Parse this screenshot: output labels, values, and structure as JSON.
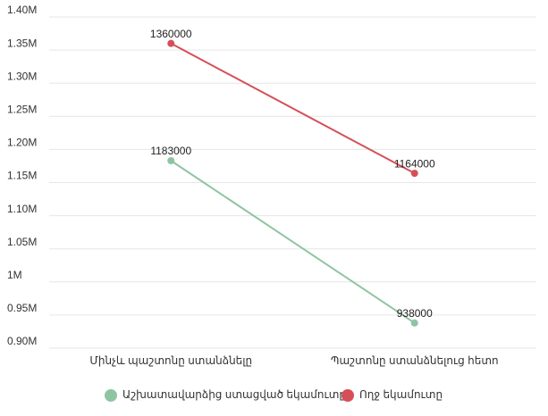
{
  "chart_data": {
    "type": "line",
    "categories": [
      "Մինչև պաշտոնը ստանձնելը",
      "Պաշտոնը ստանձնելուց հետո"
    ],
    "series": [
      {
        "name": "Աշխատավարձից ստացված եկամուտը",
        "color": "#8fc4a2",
        "values": [
          1183000,
          938000
        ]
      },
      {
        "name": "Ողջ եկամուտը",
        "color": "#d64f57",
        "values": [
          1360000,
          1164000
        ]
      }
    ],
    "ylim": [
      900000,
      1400000
    ],
    "yticks": [
      {
        "value": 900000,
        "label": "0.90M"
      },
      {
        "value": 950000,
        "label": "0.95M"
      },
      {
        "value": 1000000,
        "label": "1M"
      },
      {
        "value": 1050000,
        "label": "1.05M"
      },
      {
        "value": 1100000,
        "label": "1.10M"
      },
      {
        "value": 1150000,
        "label": "1.15M"
      },
      {
        "value": 1200000,
        "label": "1.20M"
      },
      {
        "value": 1250000,
        "label": "1.25M"
      },
      {
        "value": 1300000,
        "label": "1.30M"
      },
      {
        "value": 1350000,
        "label": "1.35M"
      },
      {
        "value": 1400000,
        "label": "1.40M"
      }
    ],
    "grid": true,
    "legend": "bottom"
  }
}
